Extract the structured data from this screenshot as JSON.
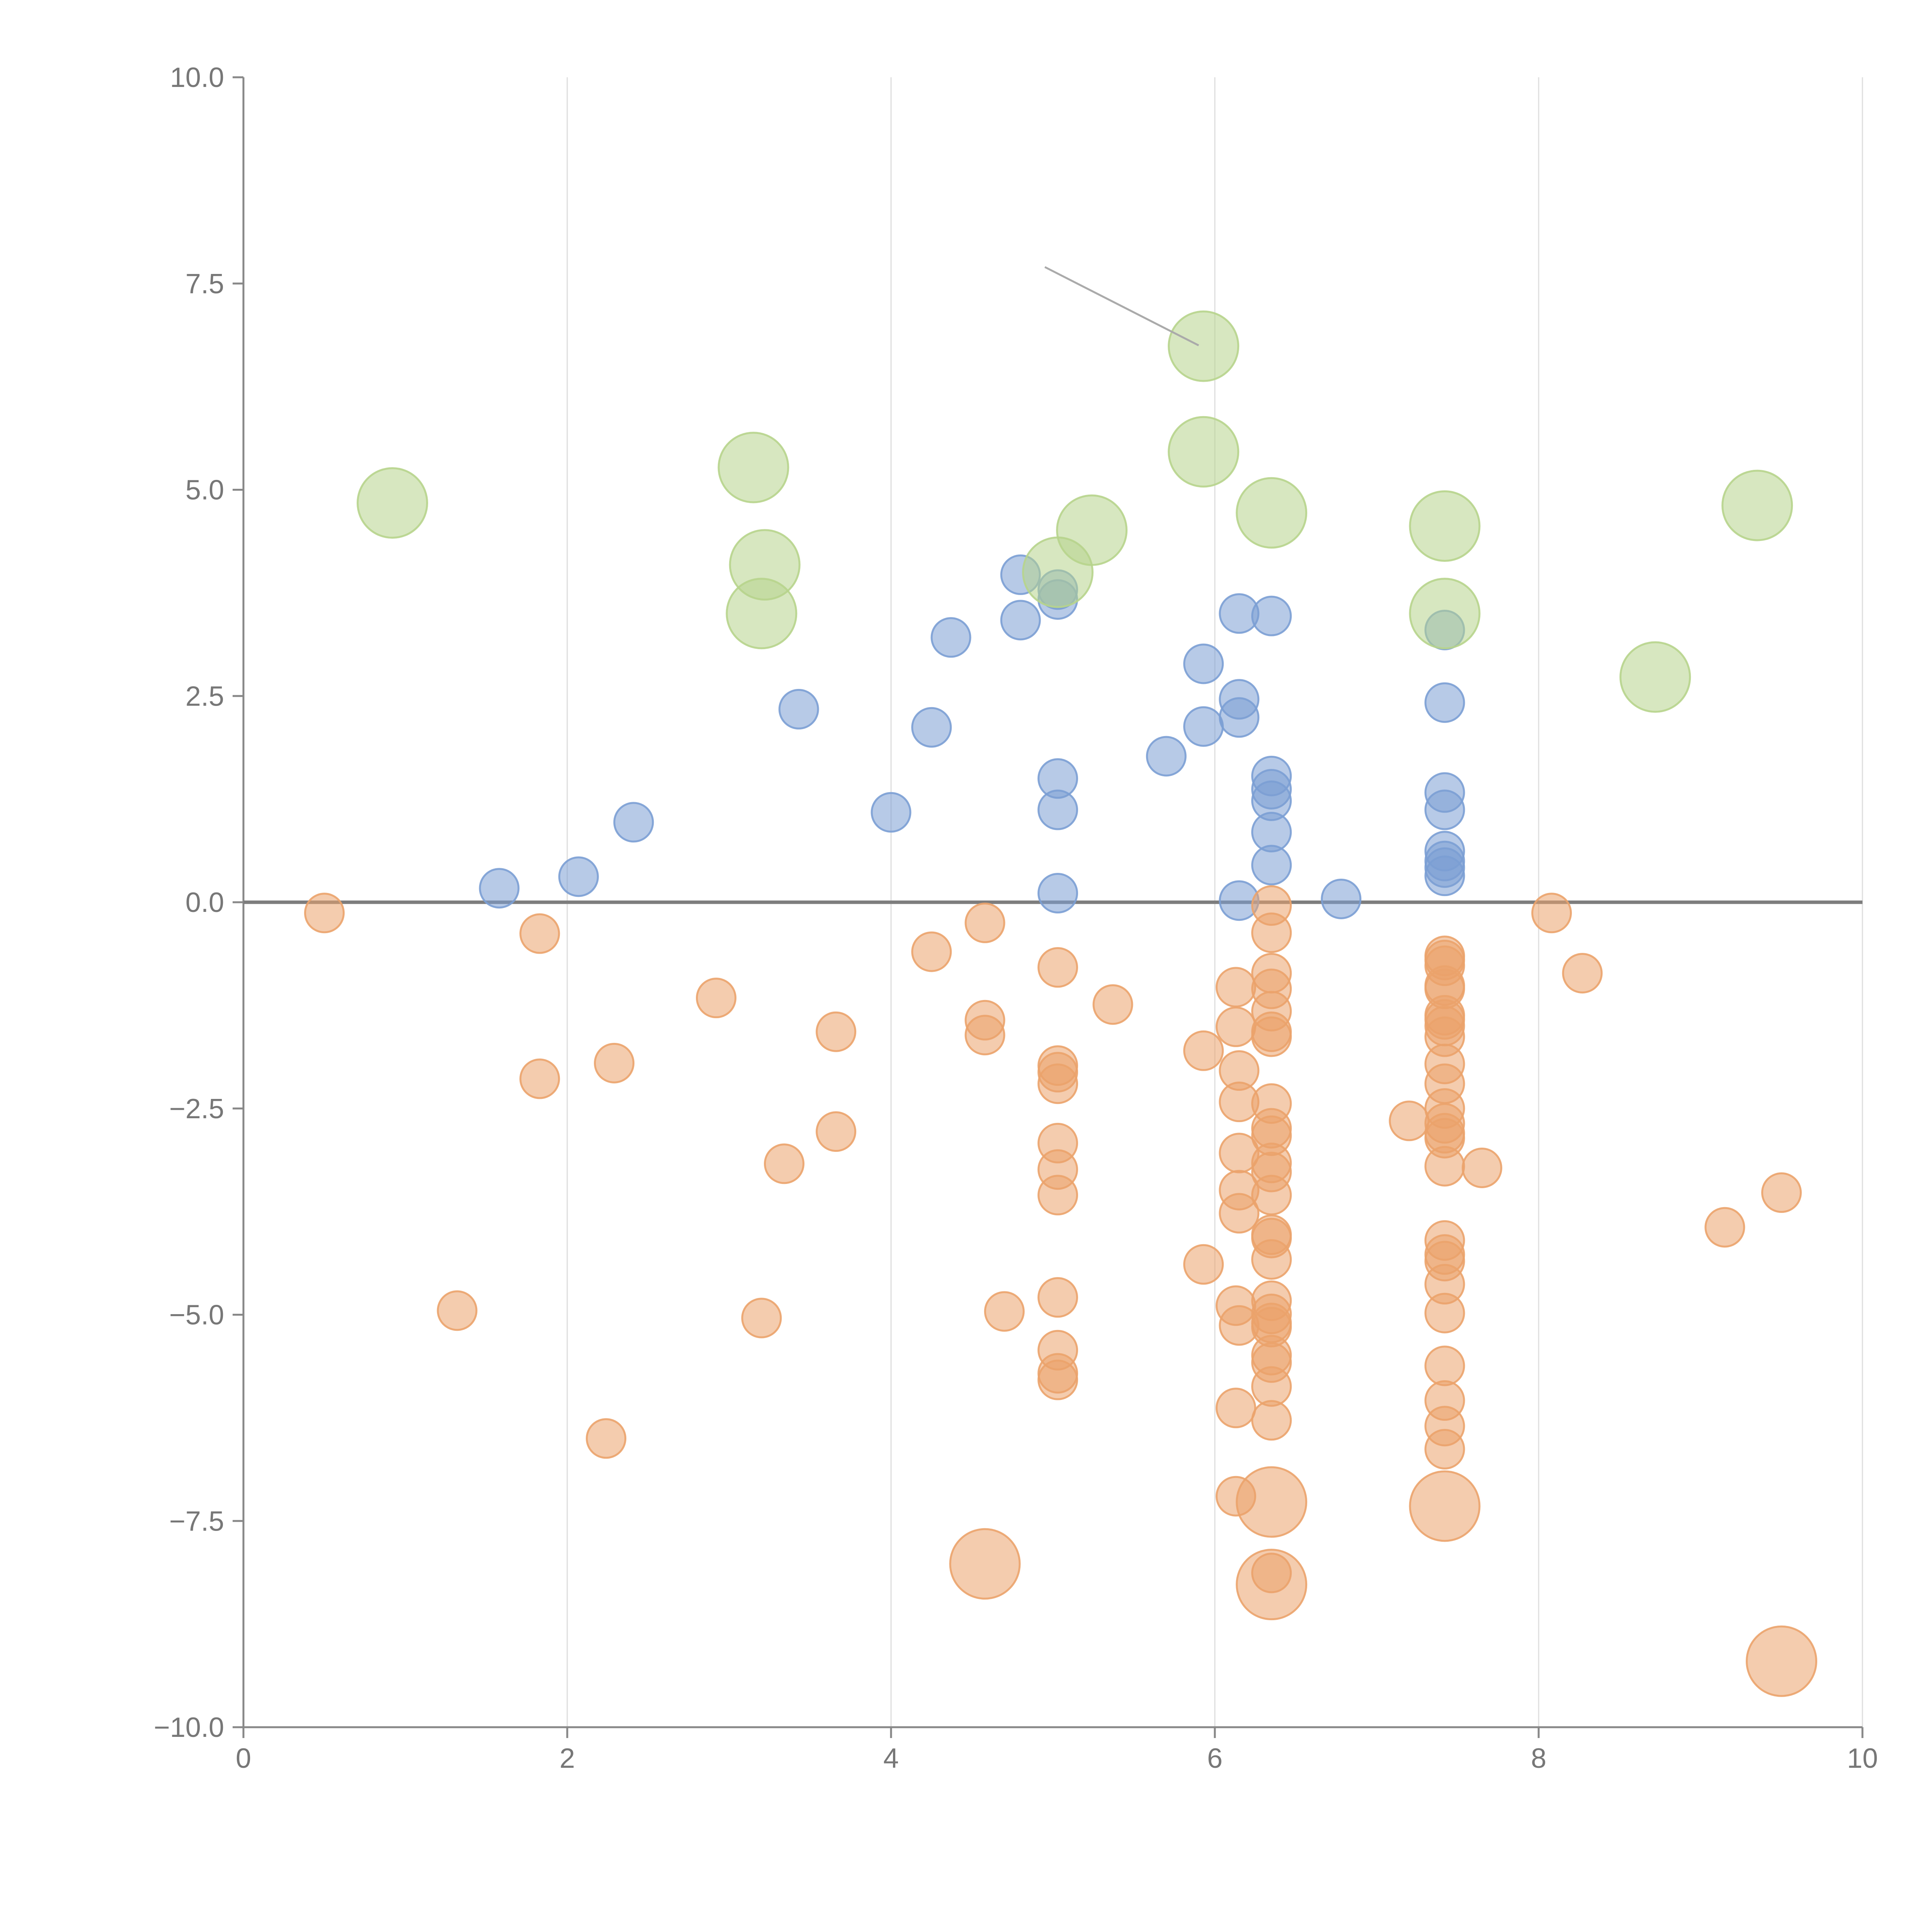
{
  "chart_data": {
    "type": "scatter",
    "title": "",
    "xlabel": "",
    "ylabel": "",
    "xlim": [
      0,
      10
    ],
    "ylim": [
      -10,
      10
    ],
    "x_ticks": [
      "0",
      "2",
      "4",
      "6",
      "8",
      "10"
    ],
    "y_ticks": [
      "10.0",
      "7.5",
      "5.0",
      "2.5",
      "0.0",
      "−2.5",
      "−5.0",
      "−7.5",
      "−10.0"
    ],
    "grid": "vertical",
    "zero_line": true,
    "legend": "none",
    "colors": {
      "blue": "#7b9fd4",
      "orange": "#eba36b",
      "green": "#b7d48c"
    },
    "series": [
      {
        "color_key": "blue",
        "size": "small",
        "points": [
          [
            1.58,
            0.17
          ],
          [
            2.07,
            0.31
          ],
          [
            2.41,
            0.97
          ],
          [
            3.43,
            2.34
          ],
          [
            4.0,
            1.09
          ],
          [
            4.25,
            2.12
          ],
          [
            4.37,
            3.21
          ],
          [
            4.8,
            3.97
          ],
          [
            4.8,
            3.42
          ],
          [
            5.03,
            3.79
          ],
          [
            5.03,
            3.67
          ],
          [
            5.03,
            1.5
          ],
          [
            5.03,
            1.12
          ],
          [
            5.03,
            0.11
          ],
          [
            5.7,
            1.77
          ],
          [
            5.93,
            2.89
          ],
          [
            5.93,
            2.13
          ],
          [
            6.15,
            3.5
          ],
          [
            6.15,
            2.46
          ],
          [
            6.15,
            2.24
          ],
          [
            6.15,
            0.02
          ],
          [
            6.35,
            3.47
          ],
          [
            6.35,
            1.53
          ],
          [
            6.35,
            1.37
          ],
          [
            6.35,
            1.23
          ],
          [
            6.35,
            0.85
          ],
          [
            6.35,
            0.45
          ],
          [
            6.78,
            0.04
          ],
          [
            7.42,
            3.3
          ],
          [
            7.42,
            2.42
          ],
          [
            7.42,
            1.33
          ],
          [
            7.42,
            1.12
          ],
          [
            7.42,
            0.62
          ],
          [
            7.42,
            0.5
          ],
          [
            7.42,
            0.42
          ],
          [
            7.42,
            0.32
          ]
        ]
      },
      {
        "color_key": "orange",
        "size": "small",
        "points": [
          [
            0.5,
            -0.13
          ],
          [
            1.32,
            -4.95
          ],
          [
            1.83,
            -0.38
          ],
          [
            1.83,
            -2.14
          ],
          [
            2.24,
            -6.5
          ],
          [
            2.29,
            -1.95
          ],
          [
            2.92,
            -1.16
          ],
          [
            3.2,
            -5.04
          ],
          [
            3.34,
            -3.17
          ],
          [
            3.66,
            -1.57
          ],
          [
            3.66,
            -2.78
          ],
          [
            4.25,
            -0.6
          ],
          [
            4.58,
            -0.25
          ],
          [
            4.58,
            -1.43
          ],
          [
            4.58,
            -1.61
          ],
          [
            4.7,
            -4.96
          ],
          [
            5.03,
            -0.79
          ],
          [
            5.03,
            -1.98
          ],
          [
            5.03,
            -2.06
          ],
          [
            5.03,
            -2.2
          ],
          [
            5.03,
            -2.92
          ],
          [
            5.03,
            -3.24
          ],
          [
            5.03,
            -3.55
          ],
          [
            5.03,
            -4.79
          ],
          [
            5.03,
            -5.43
          ],
          [
            5.03,
            -5.71
          ],
          [
            5.03,
            -5.79
          ],
          [
            5.37,
            -1.24
          ],
          [
            5.93,
            -1.8
          ],
          [
            5.93,
            -4.39
          ],
          [
            6.13,
            -1.03
          ],
          [
            6.13,
            -1.51
          ],
          [
            6.13,
            -4.89
          ],
          [
            6.13,
            -6.13
          ],
          [
            6.13,
            -7.2
          ],
          [
            6.15,
            -2.04
          ],
          [
            6.15,
            -2.42
          ],
          [
            6.15,
            -3.04
          ],
          [
            6.15,
            -3.49
          ],
          [
            6.15,
            -3.77
          ],
          [
            6.15,
            -5.13
          ],
          [
            6.35,
            -0.04
          ],
          [
            6.35,
            -0.37
          ],
          [
            6.35,
            -0.86
          ],
          [
            6.35,
            -1.05
          ],
          [
            6.35,
            -1.32
          ],
          [
            6.35,
            -1.57
          ],
          [
            6.35,
            -1.63
          ],
          [
            6.35,
            -2.44
          ],
          [
            6.35,
            -2.74
          ],
          [
            6.35,
            -2.83
          ],
          [
            6.35,
            -3.16
          ],
          [
            6.35,
            -3.27
          ],
          [
            6.35,
            -3.55
          ],
          [
            6.35,
            -4.03
          ],
          [
            6.35,
            -4.07
          ],
          [
            6.35,
            -4.33
          ],
          [
            6.35,
            -4.83
          ],
          [
            6.35,
            -4.99
          ],
          [
            6.35,
            -5.1
          ],
          [
            6.35,
            -5.15
          ],
          [
            6.35,
            -5.49
          ],
          [
            6.35,
            -5.58
          ],
          [
            6.35,
            -5.87
          ],
          [
            6.35,
            -6.28
          ],
          [
            6.35,
            -8.13
          ],
          [
            7.2,
            -2.65
          ],
          [
            7.42,
            -0.65
          ],
          [
            7.42,
            -0.7
          ],
          [
            7.42,
            -0.77
          ],
          [
            7.42,
            -1.01
          ],
          [
            7.42,
            -1.05
          ],
          [
            7.42,
            -1.37
          ],
          [
            7.42,
            -1.42
          ],
          [
            7.42,
            -1.5
          ],
          [
            7.42,
            -1.63
          ],
          [
            7.42,
            -1.96
          ],
          [
            7.42,
            -2.2
          ],
          [
            7.42,
            -2.5
          ],
          [
            7.42,
            -2.68
          ],
          [
            7.42,
            -2.8
          ],
          [
            7.42,
            -2.86
          ],
          [
            7.42,
            -3.2
          ],
          [
            7.42,
            -4.1
          ],
          [
            7.42,
            -4.27
          ],
          [
            7.42,
            -4.35
          ],
          [
            7.42,
            -4.63
          ],
          [
            7.42,
            -4.98
          ],
          [
            7.42,
            -5.62
          ],
          [
            7.42,
            -6.04
          ],
          [
            7.42,
            -6.35
          ],
          [
            7.42,
            -6.63
          ],
          [
            7.65,
            -3.22
          ],
          [
            8.08,
            -0.13
          ],
          [
            8.27,
            -0.86
          ],
          [
            9.15,
            -3.94
          ],
          [
            9.5,
            -3.52
          ]
        ]
      },
      {
        "color_key": "orange",
        "size": "large",
        "points": [
          [
            4.58,
            -8.02
          ],
          [
            6.35,
            -7.27
          ],
          [
            6.35,
            -8.27
          ],
          [
            7.42,
            -7.32
          ],
          [
            9.5,
            -9.2
          ]
        ]
      },
      {
        "color_key": "green",
        "size": "large",
        "points": [
          [
            0.92,
            4.84
          ],
          [
            3.15,
            5.27
          ],
          [
            3.22,
            4.09
          ],
          [
            3.2,
            3.5
          ],
          [
            5.03,
            4.0
          ],
          [
            5.24,
            4.51
          ],
          [
            5.93,
            6.74
          ],
          [
            5.93,
            5.46
          ],
          [
            6.35,
            4.72
          ],
          [
            7.42,
            4.56
          ],
          [
            7.42,
            3.5
          ],
          [
            8.72,
            2.73
          ],
          [
            9.35,
            4.81
          ]
        ]
      }
    ]
  }
}
